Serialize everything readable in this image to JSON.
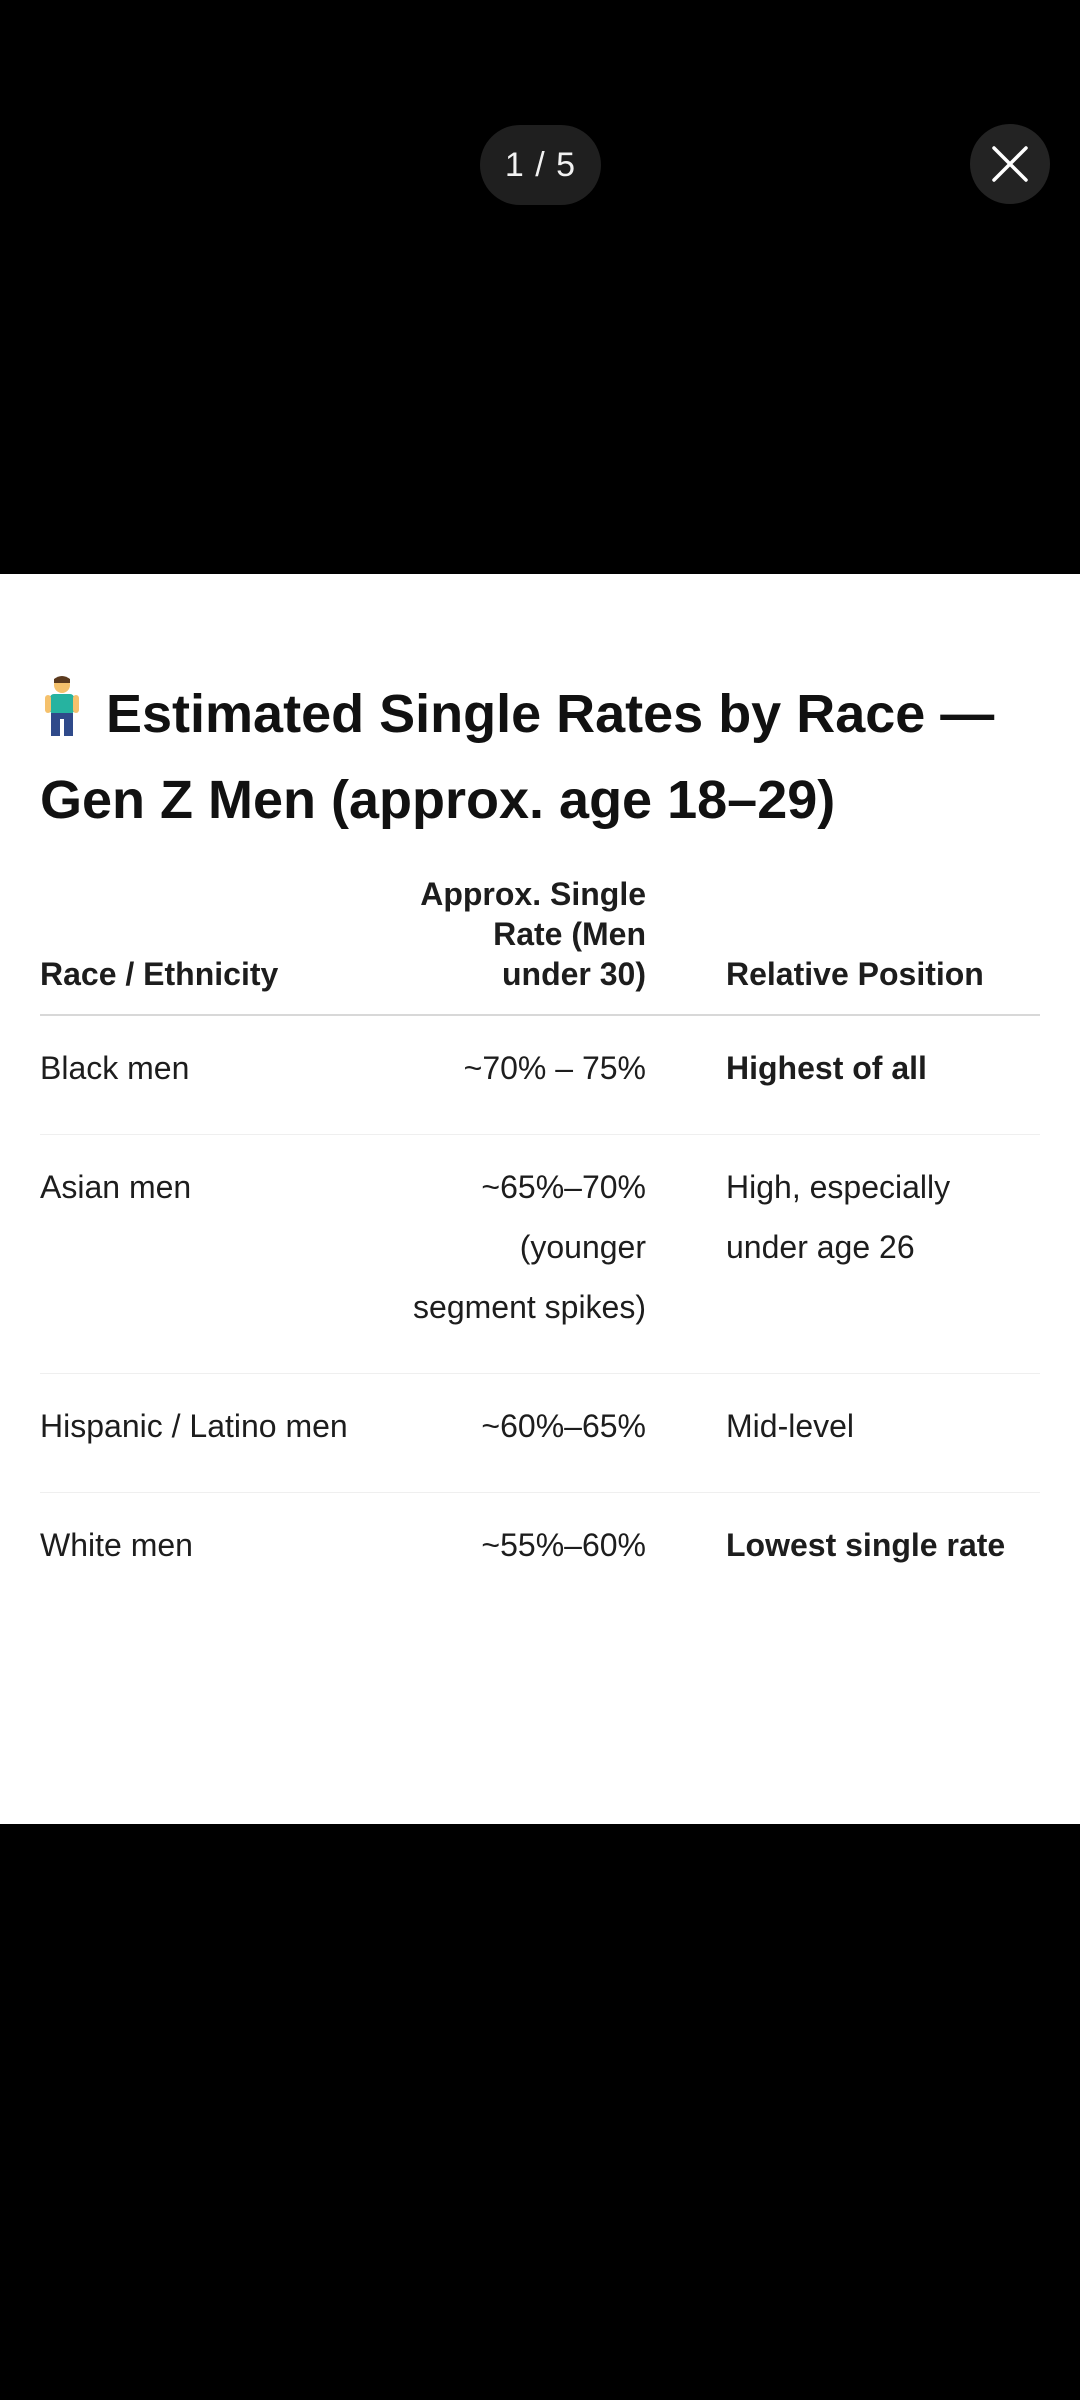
{
  "viewer": {
    "counter": "1 / 5",
    "close_icon": "close-icon"
  },
  "image": {
    "title_icon": "standing-man-emoji",
    "title": "Estimated Single Rates by Race — Gen Z Men (approx. age 18–29)",
    "table": {
      "headers": {
        "race": "Race / Ethnicity",
        "rate": "Approx. Single Rate (Men under 30)",
        "position": "Relative Position"
      },
      "rows": [
        {
          "race": "Black men",
          "rate": "~70% – 75%",
          "position": "Highest of all",
          "position_bold": true
        },
        {
          "race": "Asian men",
          "rate": "~65%–70% (younger segment spikes)",
          "position": "High, especially under age 26",
          "position_bold": false
        },
        {
          "race": "Hispanic / Latino men",
          "rate": "~60%–65%",
          "position": "Mid-level",
          "position_bold": false
        },
        {
          "race": "White men",
          "rate": "~55%–60%",
          "position": "Lowest single rate",
          "position_bold": true
        }
      ]
    }
  }
}
